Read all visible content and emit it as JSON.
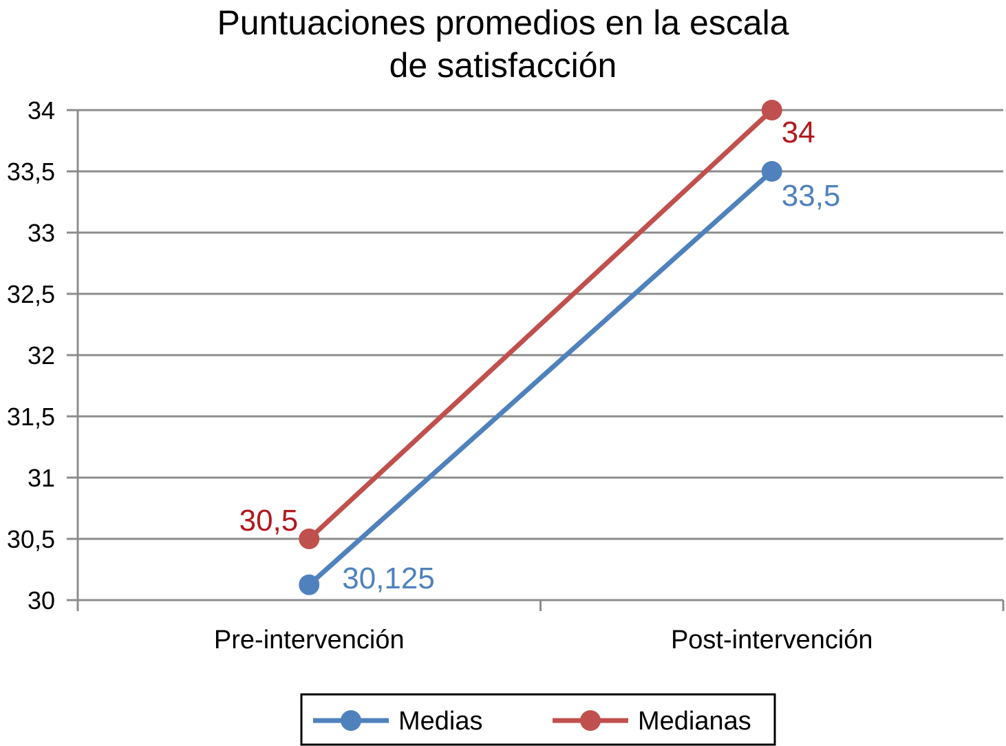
{
  "chart_data": {
    "type": "line",
    "title": [
      "Puntuaciones promedios en la escala",
      "de satisfacción"
    ],
    "xlabel": "",
    "ylabel": "",
    "categories": [
      "Pre-intervención",
      "Post-intervención"
    ],
    "ylim": [
      30,
      34
    ],
    "yticks": [
      "30",
      "30,5",
      "31",
      "31,5",
      "32",
      "32,5",
      "33",
      "33,5",
      "34"
    ],
    "ytick_values": [
      30,
      30.5,
      31,
      31.5,
      32,
      32.5,
      33,
      33.5,
      34
    ],
    "grid": true,
    "legend": "bottom",
    "series": [
      {
        "name": "Medias",
        "color": "#4f81bd",
        "label_color": "#4f81bd",
        "values": [
          30.125,
          33.5
        ],
        "labels": [
          "30,125",
          "33,5"
        ]
      },
      {
        "name": "Medianas",
        "color": "#c0504d",
        "label_color": "#b0191e",
        "values": [
          30.5,
          34
        ],
        "labels": [
          "30,5",
          "34"
        ]
      }
    ]
  }
}
